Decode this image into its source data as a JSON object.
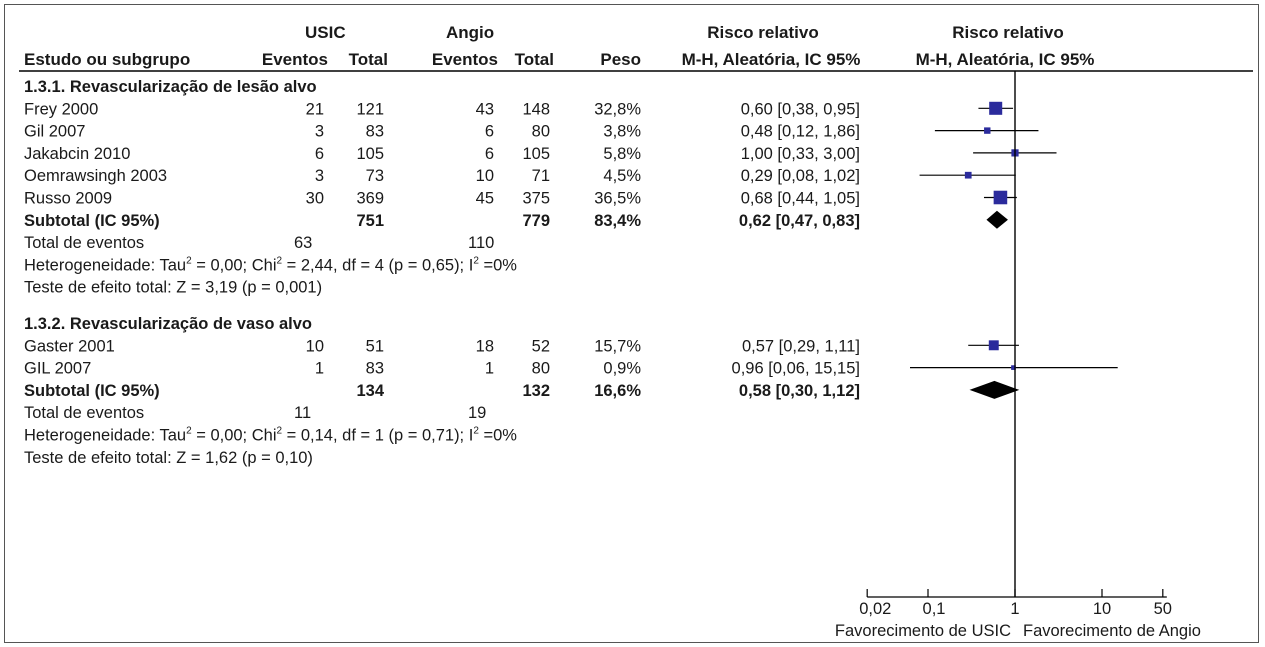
{
  "header": {
    "group1": "USIC",
    "group2": "Angio",
    "rr_title1": "Risco relativo",
    "rr_title2": "Risco relativo",
    "study_col": "Estudo ou subgrupo",
    "events1": "Eventos",
    "total1": "Total",
    "events2": "Eventos",
    "total2": "Total",
    "weight": "Peso",
    "rr_method": "M-H, Aleatória, IC 95%",
    "plot_method": "M-H, Aleatória, IC 95%"
  },
  "chart_data": {
    "type": "forest",
    "x_scale": "log",
    "x_ticks": [
      0.02,
      0.1,
      1,
      10,
      50
    ],
    "x_tick_labels": [
      "0,02",
      "0,1",
      "1",
      "10",
      "50"
    ],
    "xlim": [
      0.02,
      50
    ],
    "reference_line": 1,
    "favors_left": "Favorecimento de USIC",
    "favors_right": "Favorecimento de Angio",
    "subgroups": [
      {
        "title": "1.3.1. Revascularização de lesão alvo",
        "studies": [
          {
            "name": "Frey 2000",
            "e1": "21",
            "t1": "121",
            "e2": "43",
            "t2": "148",
            "weight": "32,8%",
            "rr_text": "0,60 [0,38, 0,95]",
            "rr": 0.6,
            "lo": 0.38,
            "hi": 0.95,
            "w": 32.8
          },
          {
            "name": "Gil 2007",
            "e1": "3",
            "t1": "83",
            "e2": "6",
            "t2": "80",
            "weight": "3,8%",
            "rr_text": "0,48 [0,12, 1,86]",
            "rr": 0.48,
            "lo": 0.12,
            "hi": 1.86,
            "w": 3.8
          },
          {
            "name": "Jakabcin 2010",
            "e1": "6",
            "t1": "105",
            "e2": "6",
            "t2": "105",
            "weight": "5,8%",
            "rr_text": "1,00 [0,33, 3,00]",
            "rr": 1.0,
            "lo": 0.33,
            "hi": 3.0,
            "w": 5.8
          },
          {
            "name": "Oemrawsingh 2003",
            "e1": "3",
            "t1": "73",
            "e2": "10",
            "t2": "71",
            "weight": "4,5%",
            "rr_text": "0,29 [0,08, 1,02]",
            "rr": 0.29,
            "lo": 0.08,
            "hi": 1.02,
            "w": 4.5
          },
          {
            "name": "Russo 2009",
            "e1": "30",
            "t1": "369",
            "e2": "45",
            "t2": "375",
            "weight": "36,5%",
            "rr_text": "0,68 [0,44, 1,05]",
            "rr": 0.68,
            "lo": 0.44,
            "hi": 1.05,
            "w": 36.5
          }
        ],
        "subtotal": {
          "name": "Subtotal (IC 95%)",
          "t1": "751",
          "t2": "779",
          "weight": "83,4%",
          "rr_text": "0,62 [0,47, 0,83]",
          "rr": 0.62,
          "lo": 0.47,
          "hi": 0.83
        },
        "events": {
          "label": "Total de eventos",
          "e1": "63",
          "e2": "110"
        },
        "heterogeneity": {
          "pre": "Heterogeneidade: Tau",
          "a": " = 0,00; Chi",
          "b": " = 2,44, df = 4 (p = 0,65); I",
          "c": " =0%"
        },
        "overall": "Teste de efeito total: Z = 3,19 (p = 0,001)"
      },
      {
        "title": "1.3.2. Revascularização de vaso alvo",
        "studies": [
          {
            "name": "Gaster 2001",
            "e1": "10",
            "t1": "51",
            "e2": "18",
            "t2": "52",
            "weight": "15,7%",
            "rr_text": "0,57 [0,29, 1,11]",
            "rr": 0.57,
            "lo": 0.29,
            "hi": 1.11,
            "w": 15.7
          },
          {
            "name": "GIL 2007",
            "e1": "1",
            "t1": "83",
            "e2": "1",
            "t2": "80",
            "weight": "0,9%",
            "rr_text": "0,96 [0,06, 15,15]",
            "rr": 0.96,
            "lo": 0.06,
            "hi": 15.15,
            "w": 0.9
          }
        ],
        "subtotal": {
          "name": "Subtotal (IC 95%)",
          "t1": "134",
          "t2": "132",
          "weight": "16,6%",
          "rr_text": "0,58 [0,30, 1,12]",
          "rr": 0.58,
          "lo": 0.3,
          "hi": 1.12
        },
        "events": {
          "label": "Total de eventos",
          "e1": "11",
          "e2": "19"
        },
        "heterogeneity": {
          "pre": "Heterogeneidade: Tau",
          "a": " = 0,00; Chi",
          "b": " = 0,14, df = 1 (p = 0,71); I",
          "c": " =0%"
        },
        "overall": "Teste de efeito total: Z = 1,62 (p = 0,10)"
      }
    ],
    "colors": {
      "marker": "#2b2b9c",
      "diamond": "#000000",
      "line": "#000000"
    }
  }
}
